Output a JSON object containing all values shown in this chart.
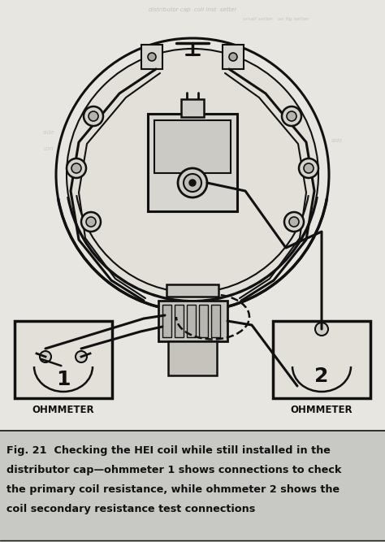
{
  "bg_color": "#c8c8c4",
  "fig_width": 4.74,
  "fig_height": 6.67,
  "dpi": 100,
  "caption_line1": "Fig. 21  Checking the HEI coil while still installed in the",
  "caption_line2": "distributor cap—ohmmeter 1 shows connections to check",
  "caption_line3": "the primary coil resistance, while ohmmeter 2 shows the",
  "caption_line4": "coil secondary resistance test connections",
  "ohmmeter1_label": "OHMMETER",
  "ohmmeter2_label": "OHMMETER",
  "ohm1_number": "1",
  "ohm2_number": "2",
  "line_color": "#111111",
  "text_color": "#111111",
  "diagram_bg": "#e8e6e0",
  "caption_bg": "#c8c8c4"
}
